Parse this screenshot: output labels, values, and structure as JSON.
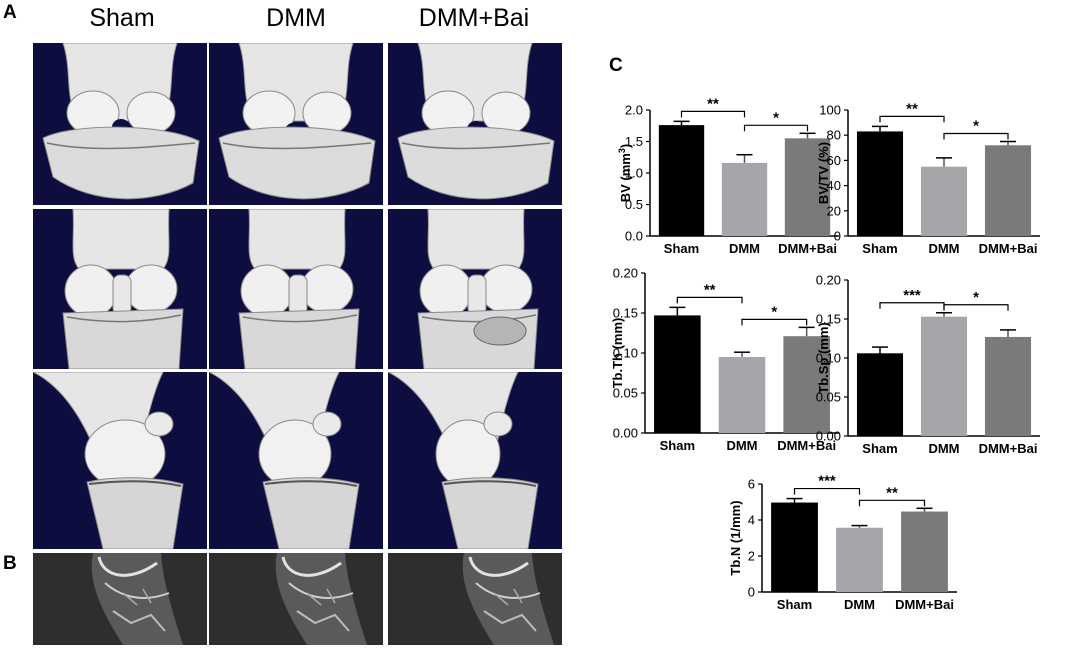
{
  "panel_labels": {
    "a": "A",
    "b": "B",
    "c": "C"
  },
  "columns": [
    "Sham",
    "DMM",
    "DMM+Bai"
  ],
  "colors": {
    "sham": "#000000",
    "dmm": "#a6a6aa",
    "bai": "#7a7a7a",
    "scan_background": "#0e0d3f",
    "bone": "#e6e6e6"
  },
  "icons": [
    "knee-joint-3d-reconstruction",
    "knee-joint-ct-slice"
  ],
  "chart_data": [
    {
      "type": "bar",
      "categories": [
        "Sham",
        "DMM",
        "DMM+Bai"
      ],
      "values": [
        1.76,
        1.16,
        1.55
      ],
      "errors": [
        0.06,
        0.13,
        0.08
      ],
      "ylabel_pre": "BV (mm",
      "ylabel_sup": "3",
      "ylabel_post": ")",
      "ylim": [
        0,
        2.0
      ],
      "yticks": [
        "0.0",
        "0.5",
        "1.0",
        "1.5",
        "2.0"
      ],
      "significance": [
        {
          "from": 0,
          "to": 1,
          "label": "**"
        },
        {
          "from": 1,
          "to": 2,
          "label": "*"
        }
      ]
    },
    {
      "type": "bar",
      "categories": [
        "Sham",
        "DMM",
        "DMM+Bai"
      ],
      "values": [
        83,
        55,
        72
      ],
      "errors": [
        4,
        7,
        3
      ],
      "ylabel": "BV/TV (%)",
      "ylim": [
        0,
        100
      ],
      "yticks": [
        "0",
        "20",
        "40",
        "60",
        "80",
        "100"
      ],
      "significance": [
        {
          "from": 0,
          "to": 1,
          "label": "**"
        },
        {
          "from": 1,
          "to": 2,
          "label": "*"
        }
      ]
    },
    {
      "type": "bar",
      "categories": [
        "Sham",
        "DMM",
        "DMM+Bai"
      ],
      "values": [
        0.147,
        0.095,
        0.121
      ],
      "errors": [
        0.01,
        0.006,
        0.011
      ],
      "ylabel": "Tb.Th (mm)",
      "ylim": [
        0,
        0.2
      ],
      "yticks": [
        "0.00",
        "0.05",
        "0.10",
        "0.15",
        "0.20"
      ],
      "significance": [
        {
          "from": 0,
          "to": 1,
          "label": "**"
        },
        {
          "from": 1,
          "to": 2,
          "label": "*"
        }
      ]
    },
    {
      "type": "bar",
      "categories": [
        "Sham",
        "DMM",
        "DMM+Bai"
      ],
      "values": [
        0.106,
        0.153,
        0.127
      ],
      "errors": [
        0.008,
        0.005,
        0.009
      ],
      "ylabel": "Tb.Sp (mm)",
      "ylim": [
        0,
        0.2
      ],
      "yticks": [
        "0.00",
        "0.05",
        "0.10",
        "0.15",
        "0.20"
      ],
      "significance": [
        {
          "from": 0,
          "to": 1,
          "label": "***"
        },
        {
          "from": 1,
          "to": 2,
          "label": "*"
        }
      ]
    },
    {
      "type": "bar",
      "categories": [
        "Sham",
        "DMM",
        "DMM+Bai"
      ],
      "values": [
        4.97,
        3.57,
        4.47
      ],
      "errors": [
        0.22,
        0.12,
        0.18
      ],
      "ylabel": "Tb.N (1/mm)",
      "ylim": [
        0,
        6
      ],
      "yticks": [
        "0",
        "2",
        "4",
        "6"
      ],
      "significance": [
        {
          "from": 0,
          "to": 1,
          "label": "***"
        },
        {
          "from": 1,
          "to": 2,
          "label": "**"
        }
      ]
    }
  ]
}
